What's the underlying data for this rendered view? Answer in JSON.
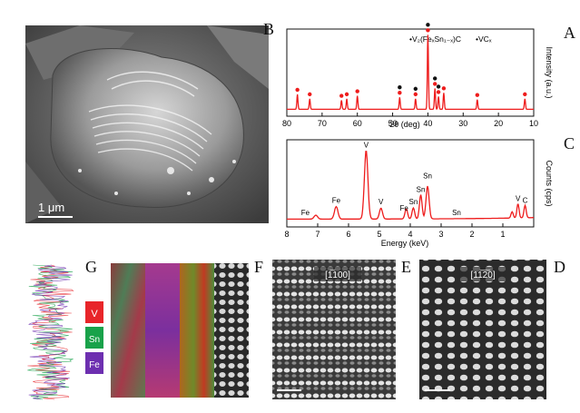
{
  "panels": {
    "A": "A",
    "B": "B",
    "C": "C",
    "D": "D",
    "E": "E",
    "F": "F",
    "G": "G"
  },
  "sem": {
    "scale_label": "1 μm"
  },
  "xrd": {
    "legend_phase": "•V₂(FeₓSn₁₋ₓ)C",
    "legend_vc": "•VCₓ",
    "xlabel": "2θ (deg)",
    "ylabel": "Intensity (a.u.)",
    "xticks": [
      "10",
      "20",
      "30",
      "40",
      "50",
      "60",
      "70",
      "80"
    ]
  },
  "eds": {
    "xlabel": "Energy (keV)",
    "ylabel": "Counts (cps)",
    "xticks": [
      "1",
      "2",
      "3",
      "4",
      "5",
      "6",
      "7",
      "8"
    ],
    "peak_labels": {
      "V_main": "V",
      "V_kb": "V",
      "Fe_a": "Fe",
      "Fe_b": "Fe",
      "Fe_low": "Fe",
      "Sn_a": "Sn",
      "Sn_b": "Sn",
      "Sn_c": "Sn",
      "Sn_d": "Sn",
      "C": "C",
      "V_low": "V"
    }
  },
  "haadf": {
    "D_direction": "[11̅2̅0]",
    "E_direction": "[1̅100]"
  },
  "map_legend": {
    "V": "V",
    "Sn": "Sn",
    "Fe": "Fe"
  },
  "colors": {
    "V": "#e8252a",
    "Sn": "#19a24a",
    "Fe": "#6d2fb0",
    "plot": "#ee1c1c"
  },
  "chart_data": [
    {
      "type": "line",
      "title": "",
      "xlabel": "2θ (deg)",
      "ylabel": "Intensity (a.u.)",
      "xlim": [
        10,
        80
      ],
      "direction": "reversed",
      "series": [
        {
          "name": "",
          "x": [
            10,
            13,
            26,
            34,
            37,
            39,
            40,
            43,
            47,
            51,
            60,
            65,
            70,
            77,
            80
          ],
          "y": [
            0,
            0.08,
            0.12,
            0.12,
            0.17,
            0.2,
            1.0,
            0.14,
            0.35,
            0.12,
            0.15,
            0.12,
            0.12,
            0.2,
            0.0
          ]
        }
      ],
      "peak_positions_2theta": [
        12.5,
        26,
        35.5,
        37,
        38,
        40,
        43.5,
        48,
        60,
        63,
        64.5,
        73.5,
        77
      ]
    },
    {
      "type": "line",
      "title": "",
      "xlabel": "Energy (keV)",
      "ylabel": "Counts (cps)",
      "xlim": [
        0,
        8
      ],
      "direction": "reversed",
      "series": [
        {
          "name": "",
          "x": [
            0.28,
            0.51,
            0.7,
            3.44,
            3.66,
            3.9,
            4.13,
            4.95,
            5.43,
            6.4,
            7.06
          ],
          "y": [
            0.16,
            0.18,
            0.08,
            0.42,
            0.31,
            0.14,
            0.13,
            0.14,
            0.88,
            0.16,
            0.05
          ]
        }
      ]
    }
  ]
}
